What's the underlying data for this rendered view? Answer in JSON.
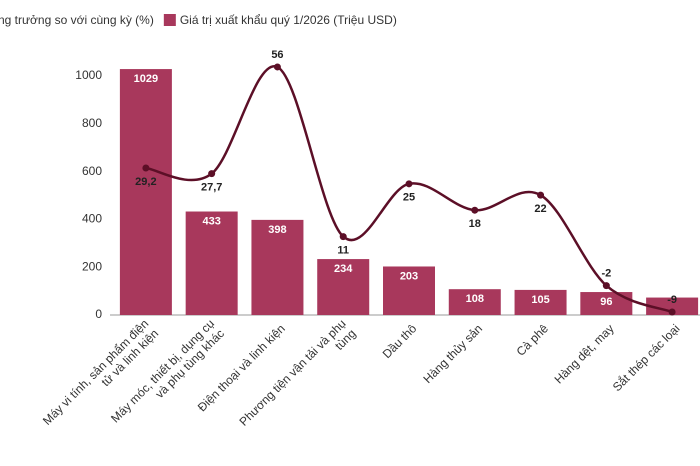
{
  "chart_data": {
    "type": "combo",
    "categories": [
      [
        "Máy vi tính, sản phẩm điện",
        "tử và linh kiện"
      ],
      [
        "Máy móc, thiết bị, dụng cụ",
        "và phụ tùng khác"
      ],
      [
        "Điện thoại và linh kiện"
      ],
      [
        "Phương tiện vận tải và phụ",
        "tùng"
      ],
      [
        "Dầu thô"
      ],
      [
        "Hàng thủy sản"
      ],
      [
        "Cà phê"
      ],
      [
        "Hàng dệt, may"
      ],
      [
        "Sắt thép các loại"
      ]
    ],
    "series": [
      {
        "name": "ng trưởng so với cùng kỳ (%)",
        "type": "line",
        "axis": "y2",
        "color": "#5c0f27",
        "values": [
          29.2,
          27.7,
          56,
          11,
          25,
          18,
          22,
          -2,
          -9
        ],
        "value_labels": [
          "29,2",
          "27,7",
          "56",
          "11",
          "25",
          "18",
          "22",
          "-2",
          "-9"
        ]
      },
      {
        "name": "Giá trị xuất khẩu quý 1/2026 (Triệu USD)",
        "type": "bar",
        "color": "#a8385c",
        "values": [
          1029,
          433,
          398,
          234,
          203,
          108,
          105,
          96,
          73
        ],
        "value_labels": [
          "1029",
          "433",
          "398",
          "234",
          "203",
          "108",
          "105",
          "96",
          ""
        ]
      }
    ],
    "ylim": [
      0,
      1000
    ],
    "yticks": [
      0,
      200,
      400,
      600,
      800,
      1000
    ],
    "y2lim": [
      -9.8,
      53.6
    ],
    "grid": false
  }
}
